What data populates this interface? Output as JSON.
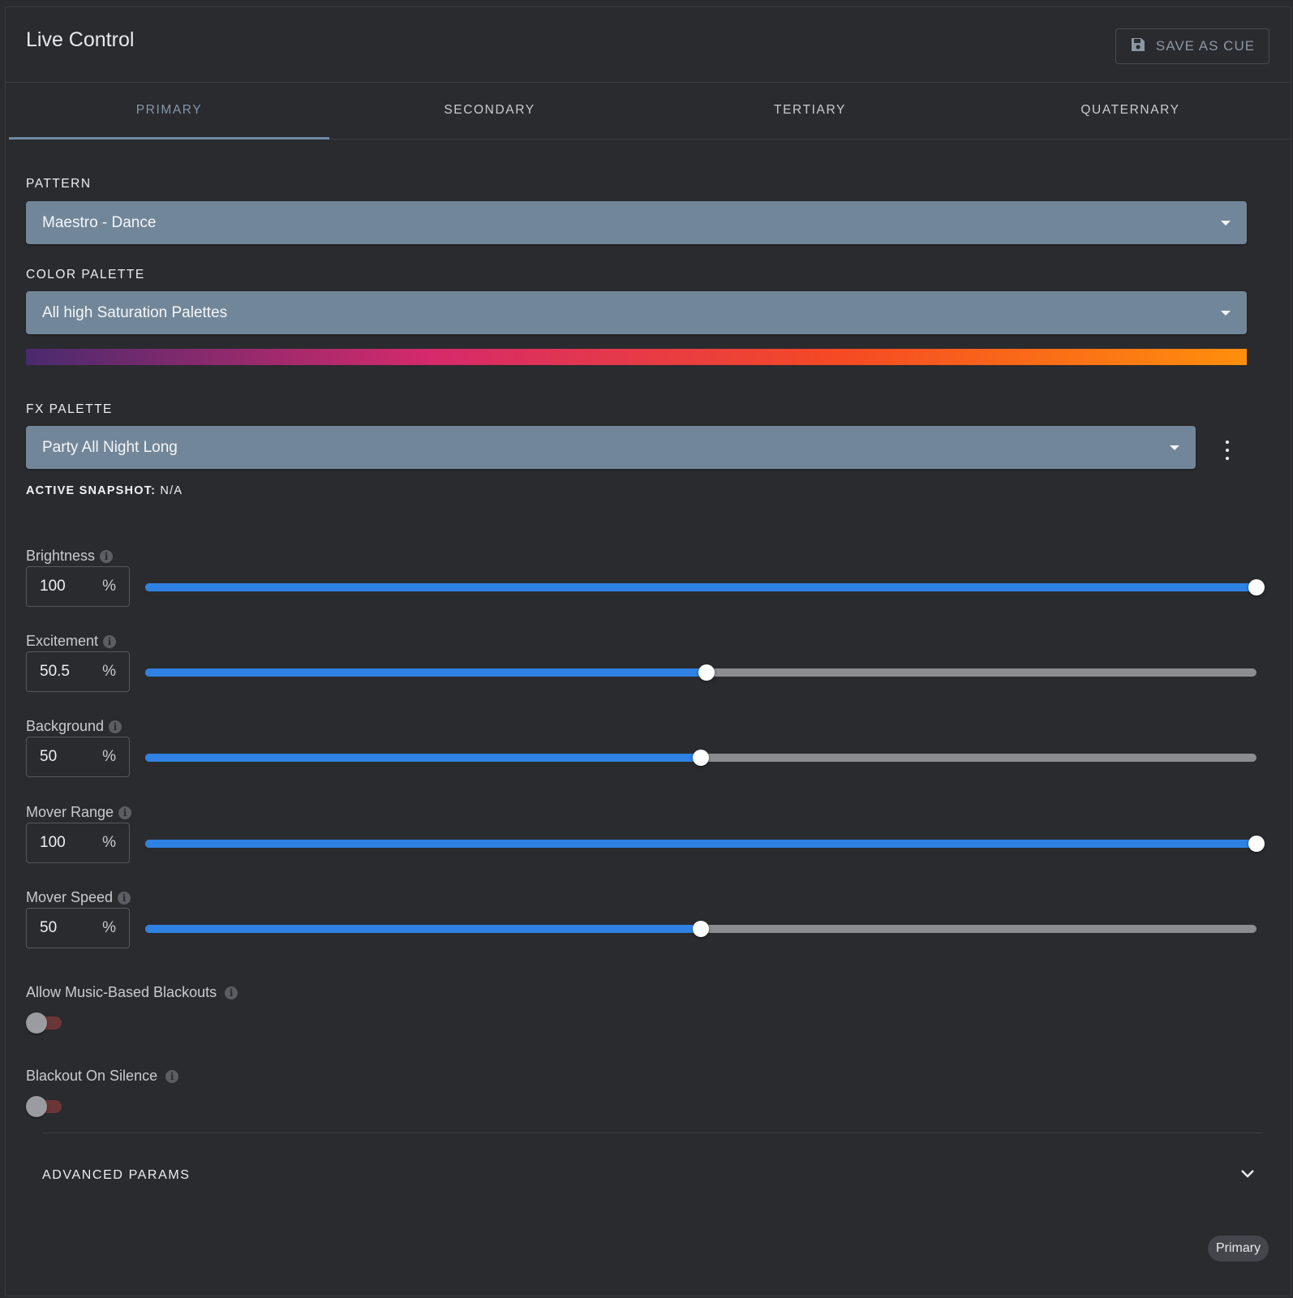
{
  "header": {
    "title": "Live Control",
    "save_label": "SAVE AS CUE"
  },
  "tabs": [
    {
      "label": "PRIMARY",
      "active": true
    },
    {
      "label": "SECONDARY",
      "active": false
    },
    {
      "label": "TERTIARY",
      "active": false
    },
    {
      "label": "QUATERNARY",
      "active": false
    }
  ],
  "pattern": {
    "label": "PATTERN",
    "value": "Maestro - Dance"
  },
  "color_palette": {
    "label": "COLOR PALETTE",
    "value": "All high Saturation Palettes",
    "gradient_colors": [
      "#4a2a6e",
      "#d62a6b",
      "#f54a24",
      "#ff8f0c"
    ]
  },
  "fx_palette": {
    "label": "FX PALETTE",
    "value": "Party All Night Long",
    "snapshot_label": "ACTIVE SNAPSHOT:",
    "snapshot_value": "N/A"
  },
  "sliders": [
    {
      "label": "Brightness",
      "value": "100",
      "unit": "%",
      "fraction": 1.0
    },
    {
      "label": "Excitement",
      "value": "50.5",
      "unit": "%",
      "fraction": 0.505
    },
    {
      "label": "Background",
      "value": "50",
      "unit": "%",
      "fraction": 0.5
    },
    {
      "label": "Mover Range",
      "value": "100",
      "unit": "%",
      "fraction": 1.0
    },
    {
      "label": "Mover Speed",
      "value": "50",
      "unit": "%",
      "fraction": 0.5
    }
  ],
  "toggles": [
    {
      "label": "Allow Music-Based Blackouts",
      "on": false
    },
    {
      "label": "Blackout On Silence",
      "on": false
    }
  ],
  "advanced": {
    "label": "ADVANCED PARAMS"
  },
  "chip": {
    "label": "Primary"
  },
  "colors": {
    "accent": "#2f82e3",
    "select_bg": "#728699",
    "background": "#2a2b2f",
    "toggle_track_off": "#6b3636"
  }
}
